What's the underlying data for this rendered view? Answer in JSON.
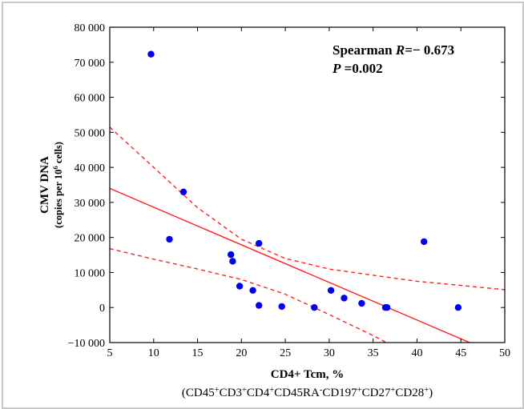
{
  "chart_data": {
    "type": "scatter",
    "xlabel": "CD4+ Tcm, %",
    "xlabel_sub_parts": [
      {
        "t": "(CD45",
        "sup": false
      },
      {
        "t": "+",
        "sup": true
      },
      {
        "t": "CD3",
        "sup": false
      },
      {
        "t": "+",
        "sup": true
      },
      {
        "t": "CD4",
        "sup": false
      },
      {
        "t": "+",
        "sup": true
      },
      {
        "t": "CD45RA",
        "sup": false
      },
      {
        "t": "-",
        "sup": true
      },
      {
        "t": "CD197",
        "sup": false
      },
      {
        "t": "+",
        "sup": true
      },
      {
        "t": "CD27",
        "sup": false
      },
      {
        "t": "+",
        "sup": true
      },
      {
        "t": "CD28",
        "sup": false
      },
      {
        "t": "+",
        "sup": true
      },
      {
        "t": ")",
        "sup": false
      }
    ],
    "ylabel": "CMV DNA",
    "ylabel_sub_parts": [
      {
        "t": "(copies per 10",
        "sup": false
      },
      {
        "t": "6",
        "sup": true
      },
      {
        "t": " cells)",
        "sup": false
      }
    ],
    "xlim": [
      5,
      50
    ],
    "ylim": [
      -10000,
      80000
    ],
    "x_ticks": [
      5,
      10,
      15,
      20,
      25,
      30,
      35,
      40,
      45,
      50
    ],
    "y_ticks": [
      -10000,
      0,
      10000,
      20000,
      30000,
      40000,
      50000,
      60000,
      70000,
      80000
    ],
    "y_tick_labels": [
      "−10 000",
      "0",
      "10 000",
      "20 000",
      "30 000",
      "40 000",
      "50 000",
      "60 000",
      "70 000",
      "80 000"
    ],
    "grid": false,
    "points": [
      {
        "x": 9.7,
        "y": 72300
      },
      {
        "x": 11.8,
        "y": 19500
      },
      {
        "x": 13.4,
        "y": 33000
      },
      {
        "x": 18.8,
        "y": 15100
      },
      {
        "x": 19.0,
        "y": 13200
      },
      {
        "x": 19.8,
        "y": 6100
      },
      {
        "x": 21.3,
        "y": 4900
      },
      {
        "x": 22.0,
        "y": 18300
      },
      {
        "x": 22.0,
        "y": 600
      },
      {
        "x": 24.6,
        "y": 300
      },
      {
        "x": 28.3,
        "y": 0
      },
      {
        "x": 30.2,
        "y": 4900
      },
      {
        "x": 31.7,
        "y": 2700
      },
      {
        "x": 33.7,
        "y": 1200
      },
      {
        "x": 36.4,
        "y": 0
      },
      {
        "x": 36.6,
        "y": 0
      },
      {
        "x": 40.8,
        "y": 18800
      },
      {
        "x": 44.7,
        "y": 0
      }
    ],
    "fit_line": [
      [
        5,
        34000
      ],
      [
        46,
        -10000
      ]
    ],
    "ci_upper": [
      [
        5,
        51500
      ],
      [
        10,
        40000
      ],
      [
        15,
        28500
      ],
      [
        20,
        19500
      ],
      [
        25,
        14000
      ],
      [
        30,
        11000
      ],
      [
        35,
        9200
      ],
      [
        40,
        7500
      ],
      [
        45,
        6300
      ],
      [
        50,
        5100
      ]
    ],
    "ci_lower": [
      [
        5,
        16800
      ],
      [
        10,
        13800
      ],
      [
        15,
        11000
      ],
      [
        20,
        8000
      ],
      [
        25,
        3800
      ],
      [
        30,
        -2000
      ],
      [
        35,
        -8000
      ],
      [
        36.5,
        -10000
      ]
    ],
    "annotation": {
      "label_parts": [
        {
          "t": "Spearman ",
          "it": false
        },
        {
          "t": "R",
          "it": true
        },
        {
          "t": "=− 0.673",
          "it": false
        }
      ],
      "p_parts": [
        {
          "t": "P",
          "it": true
        },
        {
          "t": " =0.002",
          "it": false
        }
      ]
    },
    "colors": {
      "points": "#0000ee",
      "line": "#ff2222"
    }
  }
}
